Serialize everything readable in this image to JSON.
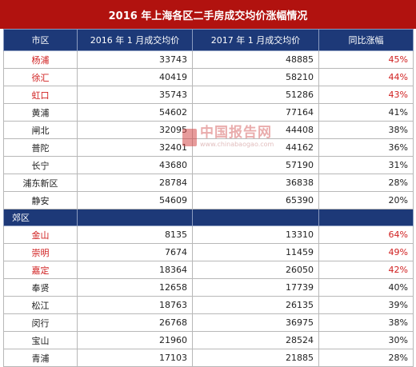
{
  "title": "2016 年上海各区二手房成交均价涨幅情况",
  "headers": [
    "市区",
    "2016 年 1 月成交均价",
    "2017 年 1 月成交均价",
    "同比涨幅"
  ],
  "urban_rows": [
    {
      "district": "杨浦",
      "p2016": "33743",
      "p2017": "48885",
      "change": "45%",
      "highlight": true
    },
    {
      "district": "徐汇",
      "p2016": "40419",
      "p2017": "58210",
      "change": "44%",
      "highlight": true
    },
    {
      "district": "虹口",
      "p2016": "35743",
      "p2017": "51286",
      "change": "43%",
      "highlight": true
    },
    {
      "district": "黄浦",
      "p2016": "54602",
      "p2017": "77164",
      "change": "41%",
      "highlight": false
    },
    {
      "district": "闸北",
      "p2016": "32095",
      "p2017": "44408",
      "change": "38%",
      "highlight": false
    },
    {
      "district": "普陀",
      "p2016": "32401",
      "p2017": "44162",
      "change": "36%",
      "highlight": false
    },
    {
      "district": "长宁",
      "p2016": "43680",
      "p2017": "57190",
      "change": "31%",
      "highlight": false
    },
    {
      "district": "浦东新区",
      "p2016": "28784",
      "p2017": "36838",
      "change": "28%",
      "highlight": false
    },
    {
      "district": "静安",
      "p2016": "54609",
      "p2017": "65390",
      "change": "20%",
      "highlight": false
    }
  ],
  "suburb_label": "郊区",
  "suburb_rows": [
    {
      "district": "金山",
      "p2016": "8135",
      "p2017": "13310",
      "change": "64%",
      "highlight": true
    },
    {
      "district": "崇明",
      "p2016": "7674",
      "p2017": "11459",
      "change": "49%",
      "highlight": true
    },
    {
      "district": "嘉定",
      "p2016": "18364",
      "p2017": "26050",
      "change": "42%",
      "highlight": true
    },
    {
      "district": "奉贤",
      "p2016": "12658",
      "p2017": "17739",
      "change": "40%",
      "highlight": false
    },
    {
      "district": "松江",
      "p2016": "18763",
      "p2017": "26135",
      "change": "39%",
      "highlight": false
    },
    {
      "district": "闵行",
      "p2016": "26768",
      "p2017": "36975",
      "change": "38%",
      "highlight": false
    },
    {
      "district": "宝山",
      "p2016": "21960",
      "p2017": "28524",
      "change": "30%",
      "highlight": false
    },
    {
      "district": "青浦",
      "p2016": "17103",
      "p2017": "21885",
      "change": "28%",
      "highlight": false
    }
  ],
  "watermark": {
    "name": "中国报告网",
    "url": "www.chinabaogao.com"
  },
  "colors": {
    "title_bg": "#b1120f",
    "header_bg": "#1d3978",
    "highlight": "#d02020"
  }
}
